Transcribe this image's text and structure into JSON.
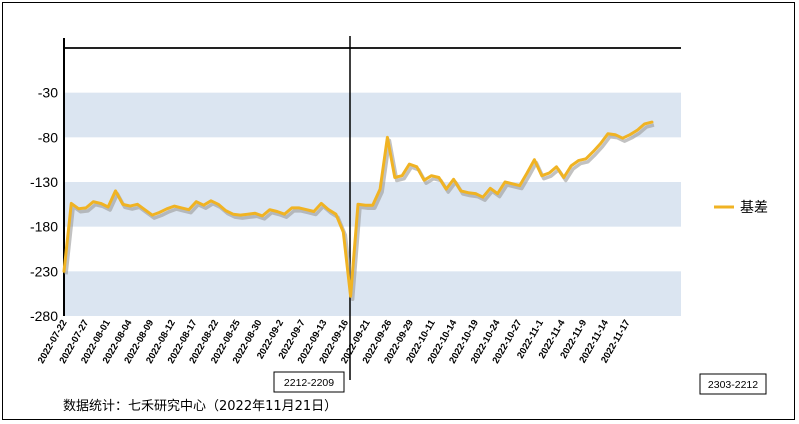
{
  "chart_data": {
    "type": "line",
    "title": "",
    "xlabel": "",
    "ylabel": "",
    "ylim": [
      -280,
      20
    ],
    "yticks": [
      -30,
      -80,
      -130,
      -180,
      -230,
      -280
    ],
    "shaded_bands": [
      [
        -80,
        -30
      ],
      [
        -180,
        -130
      ],
      [
        -280,
        -230
      ]
    ],
    "x_tick_labels": [
      "2022-07-22",
      "2022-07-27",
      "2022-08-01",
      "2022-08-04",
      "2022-08-09",
      "2022-08-12",
      "2022-08-17",
      "2022-08-22",
      "2022-08-25",
      "2022-08-30",
      "2022-09-2",
      "2022-09-7",
      "2022-09-13",
      "2022-09-16",
      "2022-09-21",
      "2022-09-26",
      "2022-09-29",
      "2022-10-11",
      "2022-10-14",
      "2022-10-19",
      "2022-10-24",
      "2022-10-27",
      "2022-11-1",
      "2022-11-4",
      "2022-11-9",
      "2022-11-14",
      "2022-11-17"
    ],
    "contract_split_label": "2212-2209",
    "contract_right_label": "2303-2212",
    "legend_position": "right",
    "series": [
      {
        "name": "基差",
        "color": "#f0b323",
        "values": [
          -230,
          -154,
          -160,
          -159,
          -152,
          -154,
          -158,
          -140,
          -155,
          -157,
          -155,
          -161,
          -167,
          -164,
          -160,
          -157,
          -159,
          -161,
          -152,
          -156,
          -151,
          -155,
          -162,
          -166,
          -167,
          -166,
          -165,
          -168,
          -161,
          -163,
          -166,
          -159,
          -159,
          -161,
          -163,
          -154,
          -161,
          -166,
          -186,
          -258,
          -155,
          -156,
          -156,
          -138,
          -80,
          -125,
          -123,
          -110,
          -113,
          -128,
          -123,
          -125,
          -138,
          -127,
          -140,
          -142,
          -143,
          -147,
          -137,
          -143,
          -130,
          -132,
          -134,
          -120,
          -105,
          -123,
          -120,
          -113,
          -125,
          -112,
          -106,
          -104,
          -96,
          -87,
          -76,
          -77,
          -81,
          -77,
          -72,
          -65,
          -63
        ]
      }
    ]
  },
  "footer": {
    "source_text": "数据统计：七禾研究中心（2022年11月21日）"
  }
}
